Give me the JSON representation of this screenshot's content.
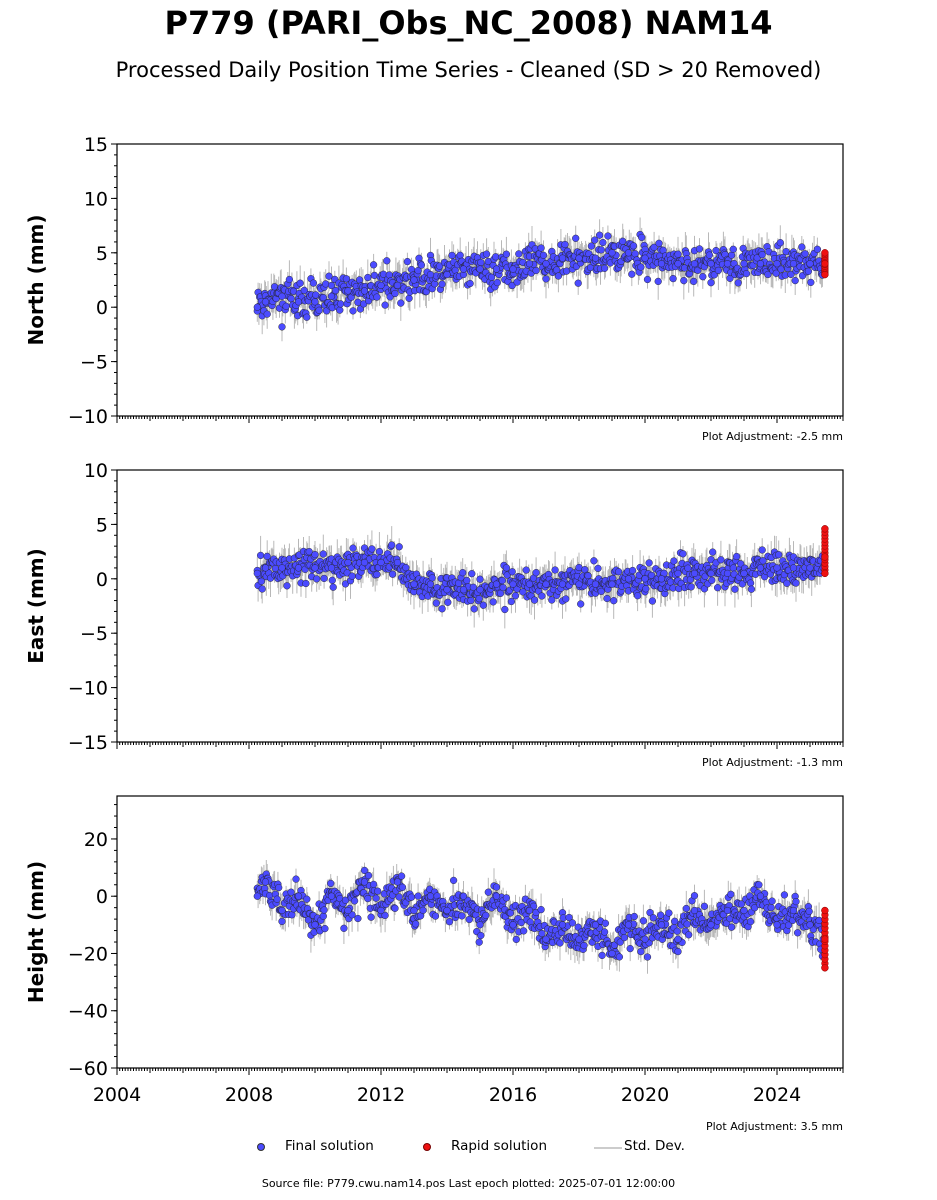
{
  "title": "P779 (PARI_Obs_NC_2008) NAM14",
  "subtitle": "Processed Daily Position Time Series - Cleaned (SD > 20 Removed)",
  "legend": {
    "final": "Final solution",
    "rapid": "Rapid solution",
    "sd": "Std. Dev."
  },
  "footer": "Source file: P779.cwu.nam14.pos  Last epoch plotted: 2025-07-01 12:00:00",
  "colors": {
    "final": "#4b4bff",
    "rapid": "#ee1111",
    "sd": "#b8b8b8"
  },
  "chart_data": [
    {
      "type": "scatter",
      "ylabel": "North (mm)",
      "adjustment": "Plot Adjustment: -2.5 mm",
      "xlim": [
        2004,
        2026
      ],
      "ylim": [
        -10,
        15
      ],
      "yticks": [
        -10,
        -5,
        0,
        5,
        10,
        15
      ],
      "series": [
        {
          "name": "Final solution",
          "x": [
            2008.25,
            2008.5,
            2009.0,
            2009.5,
            2010.0,
            2010.5,
            2011.0,
            2011.5,
            2012.0,
            2012.5,
            2013.0,
            2013.5,
            2014.0,
            2014.5,
            2015.0,
            2015.5,
            2016.0,
            2016.5,
            2017.0,
            2017.5,
            2018.0,
            2018.5,
            2019.0,
            2019.5,
            2020.0,
            2020.5,
            2021.0,
            2021.5,
            2022.0,
            2022.5,
            2023.0,
            2023.5,
            2024.0,
            2024.5,
            2025.0,
            2025.4
          ],
          "y": [
            0.0,
            0.5,
            1.0,
            0.5,
            0.5,
            1.0,
            1.5,
            1.5,
            2.0,
            2.0,
            2.5,
            3.0,
            3.0,
            3.5,
            3.5,
            3.5,
            3.5,
            4.0,
            4.0,
            4.5,
            4.5,
            4.5,
            5.0,
            5.0,
            4.5,
            4.0,
            4.0,
            4.0,
            4.0,
            4.0,
            4.0,
            4.0,
            4.0,
            4.0,
            4.0,
            4.0
          ]
        },
        {
          "name": "Rapid solution",
          "x": [
            2025.5,
            2025.52,
            2025.54
          ],
          "y": [
            3.0,
            4.0,
            5.0
          ]
        }
      ]
    },
    {
      "type": "scatter",
      "ylabel": "East (mm)",
      "adjustment": "Plot Adjustment: -1.3 mm",
      "xlim": [
        2004,
        2026
      ],
      "ylim": [
        -15,
        10
      ],
      "yticks": [
        -15,
        -10,
        -5,
        0,
        5,
        10
      ],
      "series": [
        {
          "name": "Final solution",
          "x": [
            2008.25,
            2008.5,
            2009.0,
            2009.5,
            2010.0,
            2010.5,
            2011.0,
            2011.5,
            2012.0,
            2012.5,
            2013.0,
            2013.5,
            2014.0,
            2014.5,
            2015.0,
            2015.5,
            2016.0,
            2016.5,
            2017.0,
            2017.5,
            2018.0,
            2018.5,
            2019.0,
            2019.5,
            2020.0,
            2020.5,
            2021.0,
            2021.5,
            2022.0,
            2022.5,
            2023.0,
            2023.5,
            2024.0,
            2024.5,
            2025.0,
            2025.4
          ],
          "y": [
            0.5,
            1.0,
            1.0,
            1.0,
            1.0,
            1.0,
            1.5,
            1.5,
            1.5,
            1.5,
            -0.5,
            -0.5,
            -1.0,
            -1.0,
            -1.0,
            -0.5,
            -0.5,
            -0.5,
            -0.5,
            -0.5,
            -0.5,
            -0.5,
            -0.5,
            0.0,
            0.0,
            0.0,
            0.5,
            0.5,
            0.5,
            0.5,
            0.5,
            1.0,
            1.0,
            1.0,
            1.0,
            1.0
          ]
        },
        {
          "name": "Rapid solution",
          "x": [
            2025.5,
            2025.52,
            2025.54
          ],
          "y": [
            0.5,
            2.0,
            4.6
          ]
        }
      ]
    },
    {
      "type": "scatter",
      "ylabel": "Height (mm)",
      "adjustment": "Plot Adjustment: 3.5 mm",
      "xlim": [
        2004,
        2026
      ],
      "ylim": [
        -60,
        35
      ],
      "yticks": [
        -60,
        -40,
        -20,
        0,
        20
      ],
      "xticks": [
        2004,
        2008,
        2012,
        2016,
        2020,
        2024
      ],
      "series": [
        {
          "name": "Final solution",
          "x": [
            2008.25,
            2008.5,
            2009.0,
            2009.5,
            2010.0,
            2010.5,
            2011.0,
            2011.5,
            2012.0,
            2012.5,
            2013.0,
            2013.5,
            2014.0,
            2014.5,
            2015.0,
            2015.5,
            2016.0,
            2016.5,
            2017.0,
            2017.5,
            2018.0,
            2018.5,
            2019.0,
            2019.5,
            2020.0,
            2020.5,
            2021.0,
            2021.5,
            2022.0,
            2022.5,
            2023.0,
            2023.5,
            2024.0,
            2024.5,
            2025.0,
            2025.4
          ],
          "y": [
            0,
            5,
            -5,
            0,
            -10,
            0,
            -5,
            5,
            -5,
            5,
            -5,
            0,
            -5,
            0,
            -10,
            0,
            -10,
            -5,
            -15,
            -10,
            -15,
            -10,
            -20,
            -10,
            -15,
            -10,
            -15,
            -5,
            -10,
            -5,
            -5,
            0,
            -10,
            -5,
            -10,
            -15
          ]
        },
        {
          "name": "Rapid solution",
          "x": [
            2025.5,
            2025.52,
            2025.54
          ],
          "y": [
            -25,
            -15,
            -5
          ]
        }
      ]
    }
  ]
}
